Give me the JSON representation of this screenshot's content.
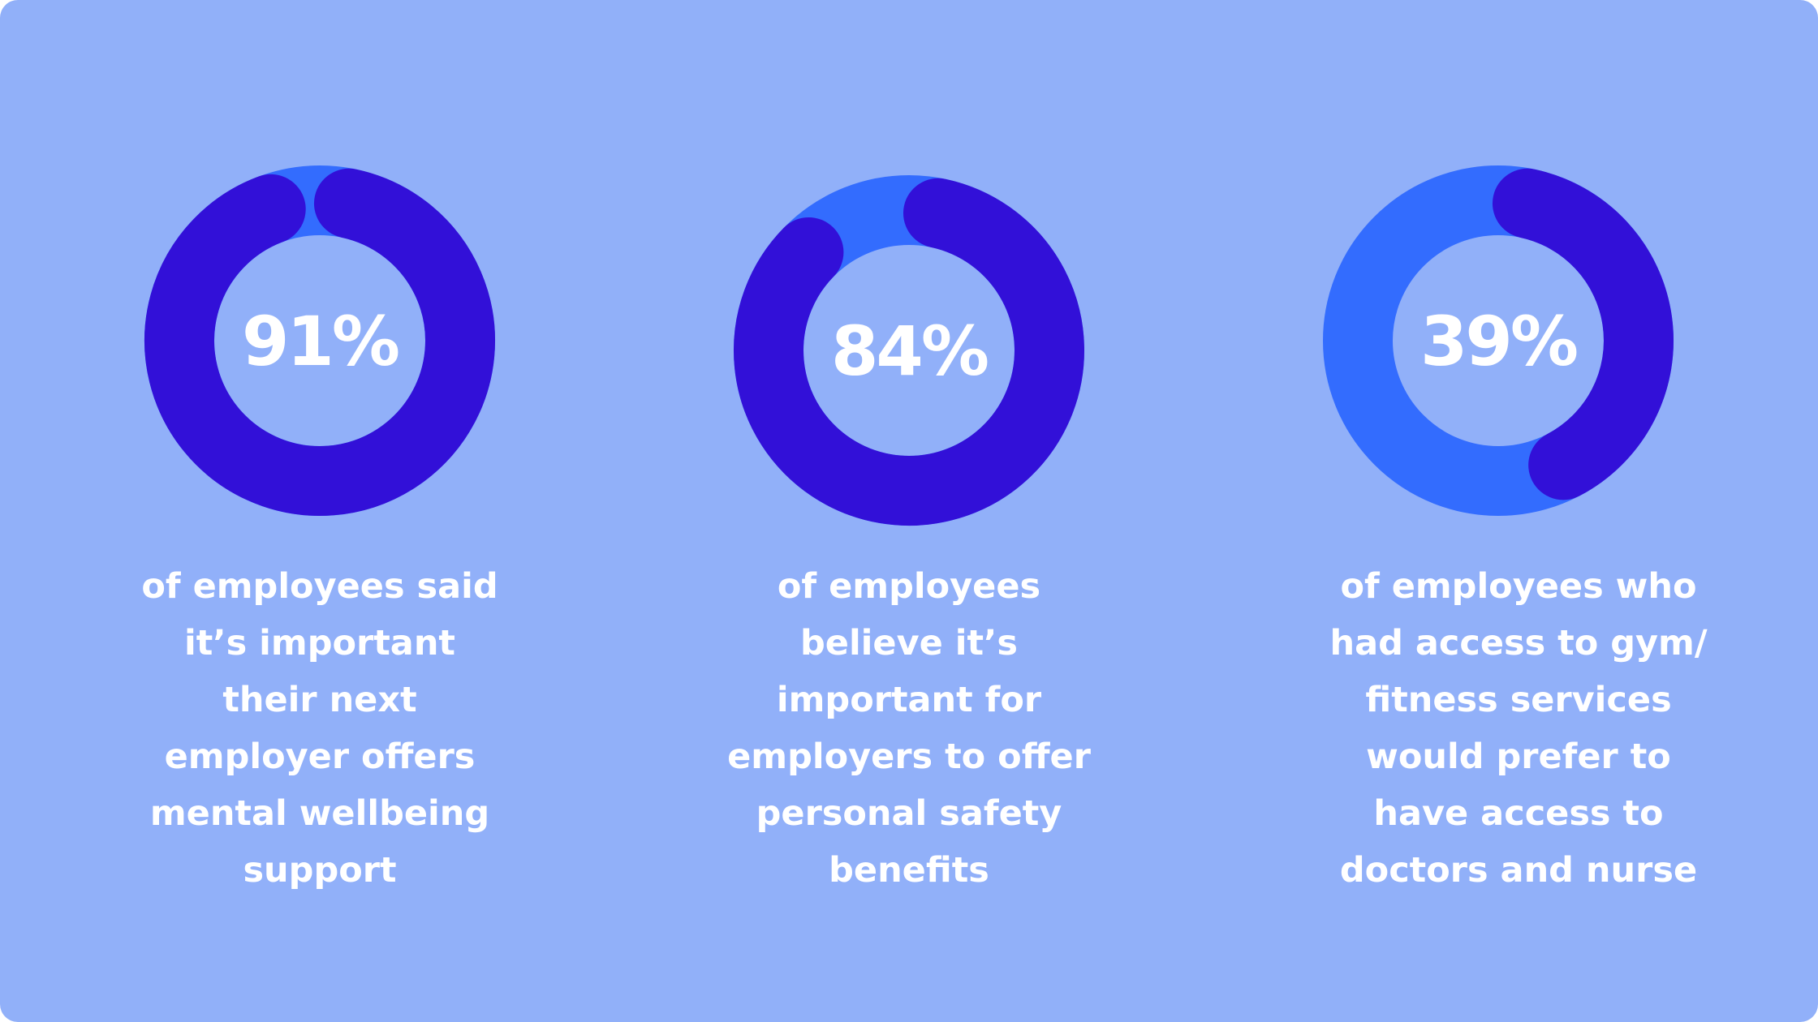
{
  "colors": {
    "background": "#91b0f9",
    "ring_track": "#336cfe",
    "ring_fill": "#3210d8",
    "text": "#ffffff"
  },
  "chart_data": [
    {
      "type": "pie",
      "value": 91,
      "label": "91%",
      "caption": [
        "of employees said",
        "it’s important",
        "their next",
        "employer offers",
        "mental wellbeing",
        "support"
      ]
    },
    {
      "type": "pie",
      "value": 84,
      "label": "84%",
      "caption": [
        "of employees",
        "believe it’s",
        "important for",
        "employers to offer",
        "personal safety",
        "benefits"
      ]
    },
    {
      "type": "pie",
      "value": 39,
      "label": "39%",
      "caption": [
        "of employees who",
        "had access to gym/",
        "fitness services",
        "would prefer to",
        "have access to",
        "doctors and nurse"
      ]
    }
  ]
}
